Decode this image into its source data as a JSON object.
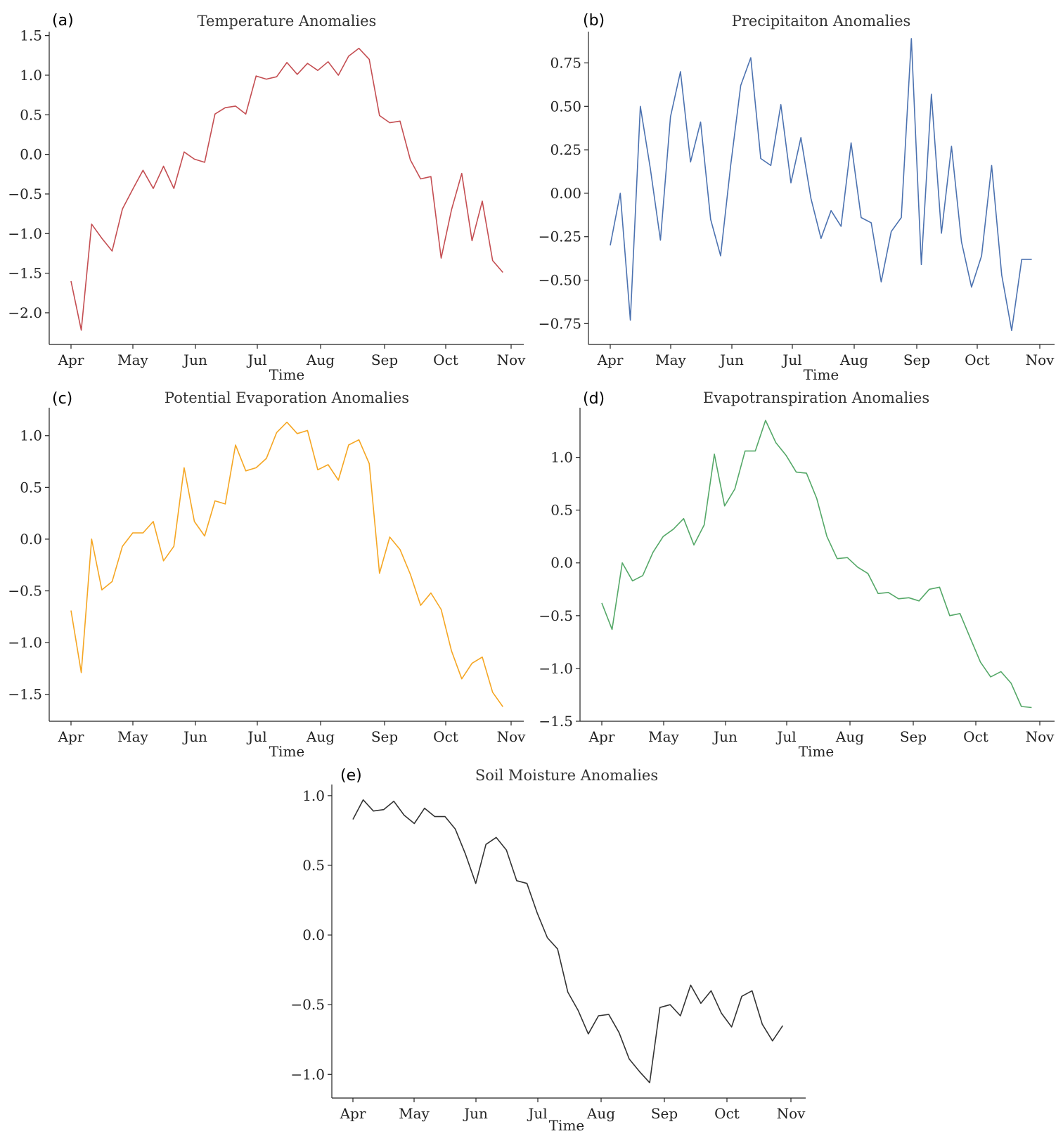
{
  "chart_data": [
    {
      "type": "line",
      "panel_letter": "(a)",
      "title": "Temperature Anomalies",
      "xlabel": "Time",
      "ylabel": "",
      "color": "#c44e52",
      "x_tick_labels": [
        "Apr",
        "May",
        "Jun",
        "Jul",
        "Aug",
        "Sep",
        "Oct",
        "Nov"
      ],
      "yticks": [
        -2.0,
        -1.5,
        -1.0,
        -0.5,
        0.0,
        0.5,
        1.0,
        1.5
      ],
      "ytick_labels": [
        "−2.0",
        "−1.5",
        "−1.0",
        "−0.5",
        "0.0",
        "0.5",
        "1.0",
        "1.5"
      ],
      "ylim": [
        -2.4,
        1.55
      ],
      "weekly_points_from": "Apr",
      "values": [
        -1.6,
        -2.22,
        -0.88,
        -1.06,
        -1.22,
        -0.69,
        -0.44,
        -0.2,
        -0.43,
        -0.15,
        -0.43,
        0.03,
        -0.06,
        -0.1,
        0.51,
        0.59,
        0.61,
        0.51,
        0.99,
        0.95,
        0.98,
        1.16,
        1.01,
        1.15,
        1.06,
        1.17,
        1.0,
        1.24,
        1.34,
        1.2,
        0.49,
        0.4,
        0.42,
        -0.07,
        -0.31,
        -0.28,
        -1.31,
        -0.7,
        -0.24,
        -1.09,
        -0.59,
        -1.34,
        -1.49
      ]
    },
    {
      "type": "line",
      "panel_letter": "(b)",
      "title": "Precipitaiton Anomalies",
      "xlabel": "Time",
      "ylabel": "",
      "color": "#4c72b0",
      "x_tick_labels": [
        "Apr",
        "May",
        "Jun",
        "Jul",
        "Aug",
        "Sep",
        "Oct",
        "Nov"
      ],
      "yticks": [
        -0.75,
        -0.5,
        -0.25,
        0.0,
        0.25,
        0.5,
        0.75
      ],
      "ytick_labels": [
        "−0.75",
        "−0.50",
        "−0.25",
        "0.00",
        "0.25",
        "0.50",
        "0.75"
      ],
      "ylim": [
        -0.87,
        0.93
      ],
      "weekly_points_from": "Apr",
      "values": [
        -0.3,
        0.0,
        -0.73,
        0.5,
        0.14,
        -0.27,
        0.44,
        0.7,
        0.18,
        0.41,
        -0.15,
        -0.36,
        0.16,
        0.62,
        0.78,
        0.2,
        0.16,
        0.51,
        0.06,
        0.32,
        -0.03,
        -0.26,
        -0.1,
        -0.19,
        0.29,
        -0.14,
        -0.17,
        -0.51,
        -0.22,
        -0.14,
        0.89,
        -0.41,
        0.57,
        -0.23,
        0.27,
        -0.28,
        -0.54,
        -0.36,
        0.16,
        -0.47,
        -0.79,
        -0.38,
        -0.38
      ]
    },
    {
      "type": "line",
      "panel_letter": "(c)",
      "title": "Potential Evaporation Anomalies",
      "xlabel": "Time",
      "ylabel": "",
      "color": "#f5a623",
      "x_tick_labels": [
        "Apr",
        "May",
        "Jun",
        "Jul",
        "Aug",
        "Sep",
        "Oct",
        "Nov"
      ],
      "yticks": [
        -1.5,
        -1.0,
        -0.5,
        0.0,
        0.5,
        1.0
      ],
      "ytick_labels": [
        "−1.5",
        "−1.0",
        "−0.5",
        "0.0",
        "0.5",
        "1.0"
      ],
      "ylim": [
        -1.76,
        1.27
      ],
      "weekly_points_from": "Apr",
      "values": [
        -0.69,
        -1.29,
        0.0,
        -0.49,
        -0.41,
        -0.07,
        0.06,
        0.06,
        0.17,
        -0.21,
        -0.07,
        0.69,
        0.17,
        0.03,
        0.37,
        0.34,
        0.91,
        0.66,
        0.69,
        0.78,
        1.03,
        1.13,
        1.02,
        1.05,
        0.67,
        0.72,
        0.57,
        0.91,
        0.96,
        0.73,
        -0.33,
        0.02,
        -0.1,
        -0.34,
        -0.64,
        -0.52,
        -0.68,
        -1.08,
        -1.35,
        -1.2,
        -1.14,
        -1.48,
        -1.62
      ]
    },
    {
      "type": "line",
      "panel_letter": "(d)",
      "title": "Evapotranspiration Anomalies",
      "xlabel": "Time",
      "ylabel": "",
      "color": "#55a868",
      "x_tick_labels": [
        "Apr",
        "May",
        "Jun",
        "Jul",
        "Aug",
        "Sep",
        "Oct",
        "Nov"
      ],
      "yticks": [
        -1.5,
        -1.0,
        -0.5,
        0.0,
        0.5,
        1.0
      ],
      "ytick_labels": [
        "−1.5",
        "−1.0",
        "−0.5",
        "0.0",
        "0.5",
        "1.0"
      ],
      "ylim": [
        -1.5,
        1.47
      ],
      "weekly_points_from": "Apr",
      "values": [
        -0.38,
        -0.63,
        0.0,
        -0.17,
        -0.12,
        0.1,
        0.25,
        0.32,
        0.42,
        0.17,
        0.36,
        1.03,
        0.54,
        0.7,
        1.06,
        1.06,
        1.35,
        1.14,
        1.02,
        0.86,
        0.85,
        0.61,
        0.25,
        0.04,
        0.05,
        -0.04,
        -0.1,
        -0.29,
        -0.28,
        -0.34,
        -0.33,
        -0.36,
        -0.25,
        -0.23,
        -0.5,
        -0.48,
        -0.71,
        -0.94,
        -1.08,
        -1.03,
        -1.14,
        -1.36,
        -1.37
      ]
    },
    {
      "type": "line",
      "panel_letter": "(e)",
      "title": "Soil Moisture Anomalies",
      "xlabel": "Time",
      "ylabel": "",
      "color": "#333333",
      "x_tick_labels": [
        "Apr",
        "May",
        "Jun",
        "Jul",
        "Aug",
        "Sep",
        "Oct",
        "Nov"
      ],
      "yticks": [
        -1.0,
        -0.5,
        0.0,
        0.5,
        1.0
      ],
      "ytick_labels": [
        "−1.0",
        "−0.5",
        "0.0",
        "0.5",
        "1.0"
      ],
      "ylim": [
        -1.17,
        1.08
      ],
      "weekly_points_from": "Apr",
      "values": [
        0.83,
        0.97,
        0.89,
        0.9,
        0.96,
        0.86,
        0.8,
        0.91,
        0.85,
        0.85,
        0.76,
        0.58,
        0.37,
        0.65,
        0.7,
        0.61,
        0.39,
        0.37,
        0.16,
        -0.02,
        -0.1,
        -0.41,
        -0.54,
        -0.71,
        -0.58,
        -0.57,
        -0.7,
        -0.89,
        -0.98,
        -1.06,
        -0.52,
        -0.5,
        -0.58,
        -0.36,
        -0.49,
        -0.4,
        -0.56,
        -0.66,
        -0.44,
        -0.4,
        -0.64,
        -0.76,
        -0.65
      ]
    }
  ]
}
